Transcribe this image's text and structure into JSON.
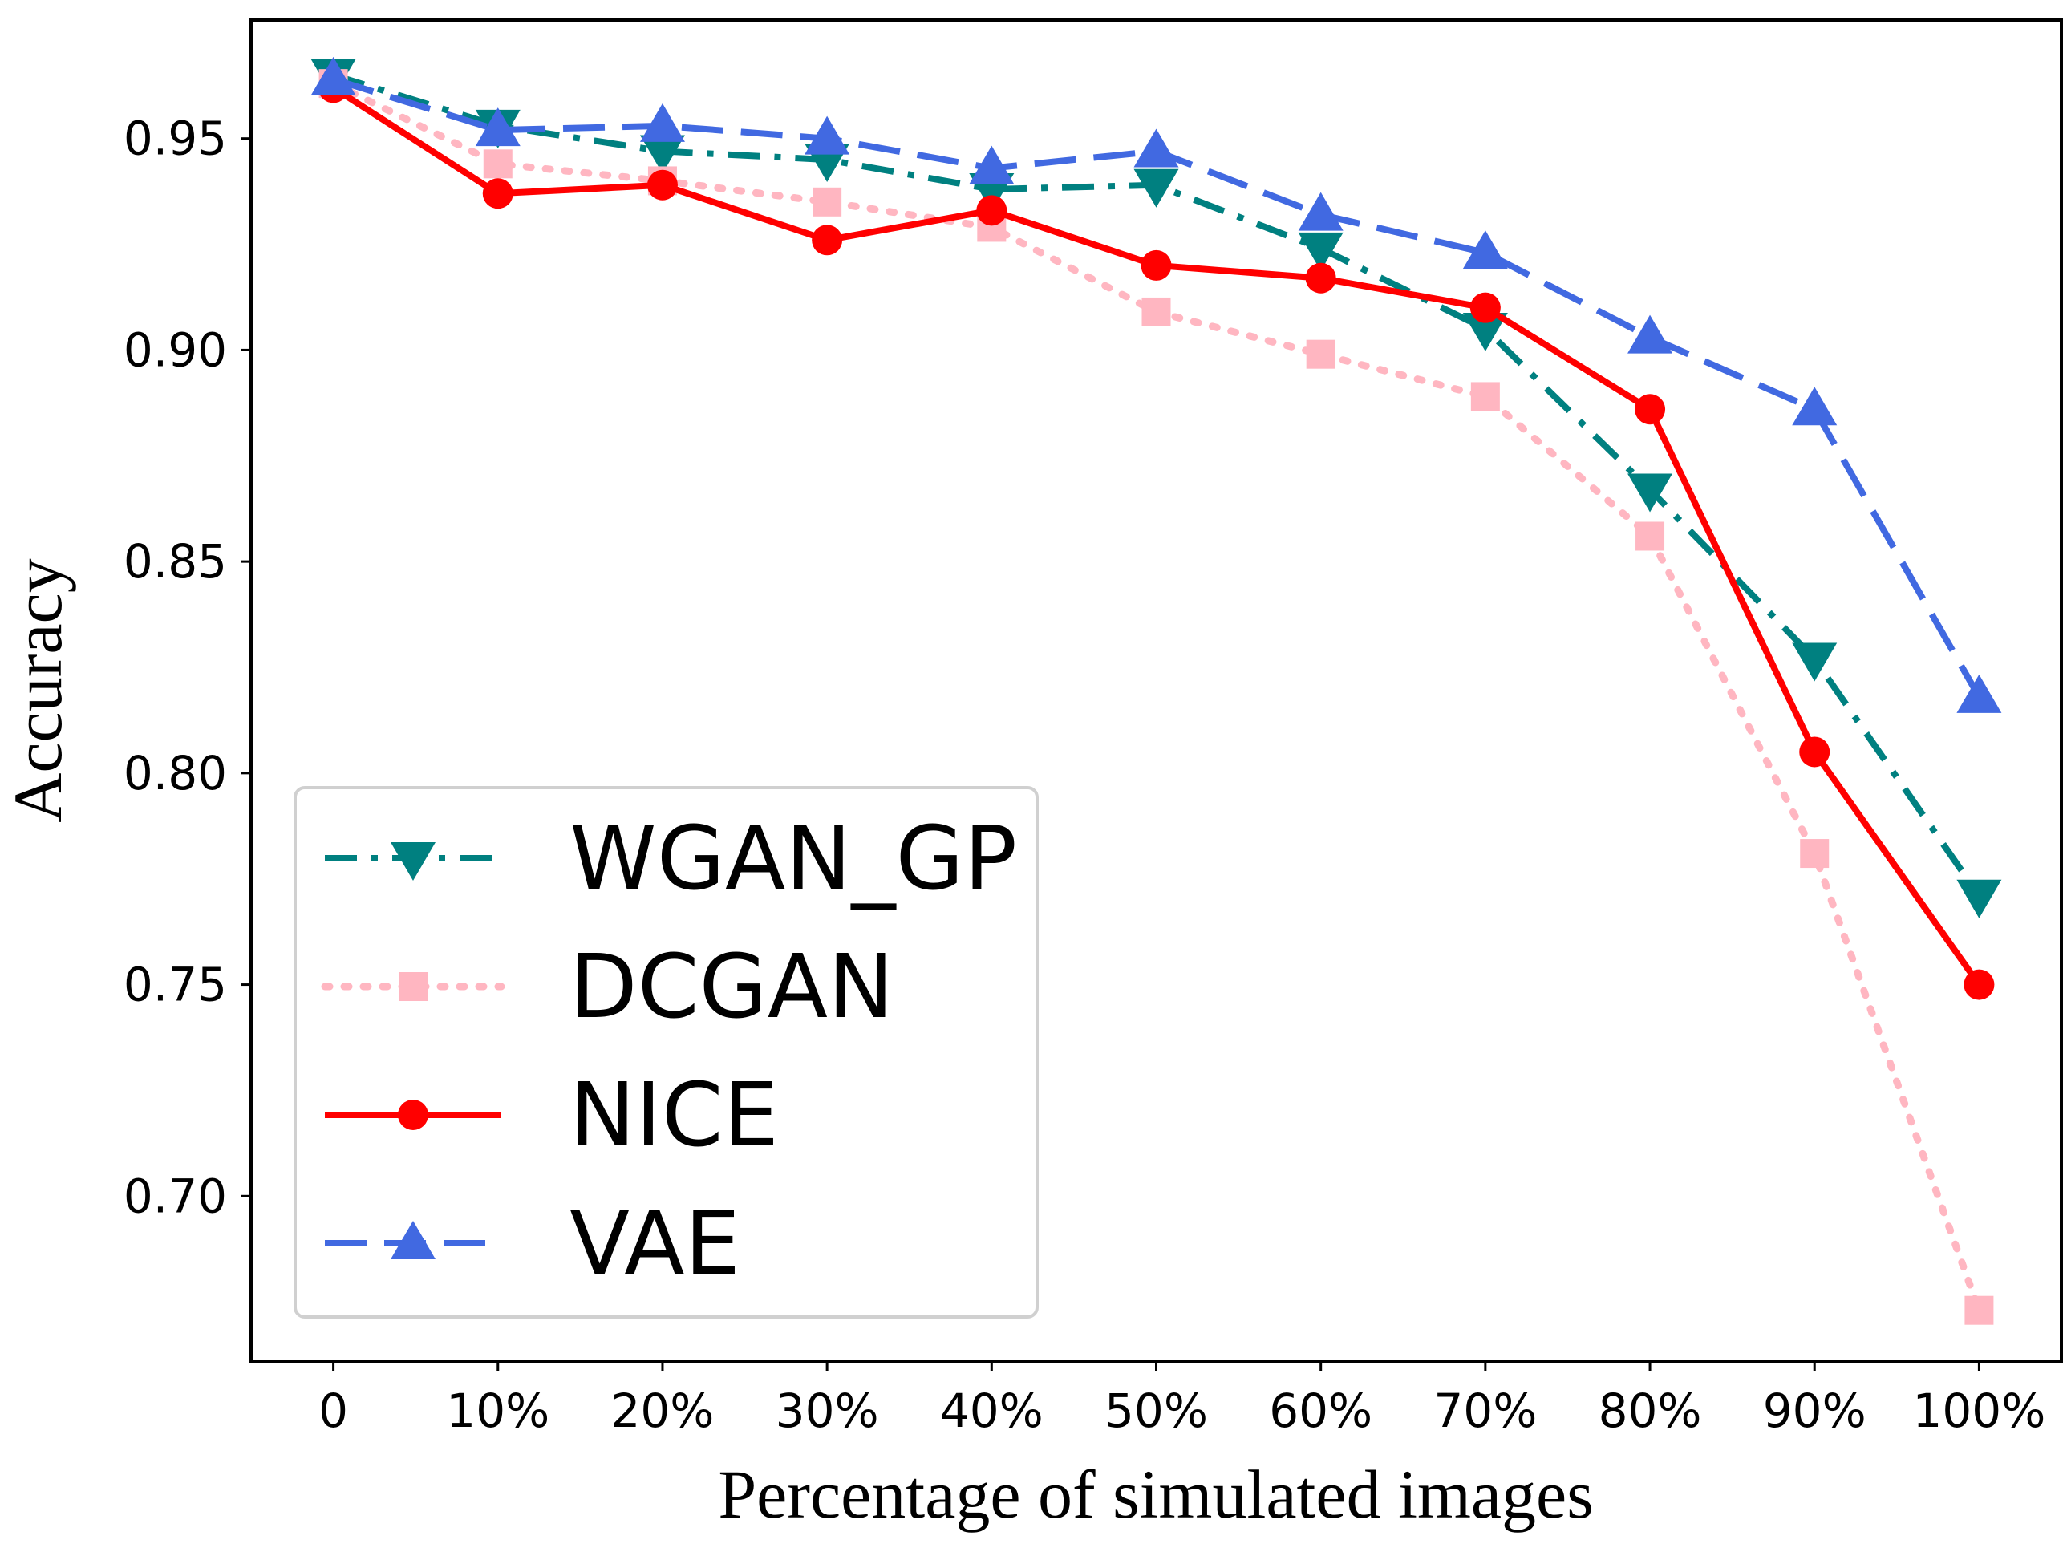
{
  "chart_data": {
    "type": "line",
    "title": "",
    "xlabel": "Percentage of simulated images",
    "ylabel": "Accuracy",
    "categories": [
      "0",
      "10%",
      "20%",
      "30%",
      "40%",
      "50%",
      "60%",
      "70%",
      "80%",
      "90%",
      "100%"
    ],
    "yticks": [
      0.7,
      0.75,
      0.8,
      0.85,
      0.9,
      0.95
    ],
    "ytick_labels": [
      "0.70",
      "0.75",
      "0.80",
      "0.85",
      "0.90",
      "0.95"
    ],
    "ylim": [
      0.661,
      0.978
    ],
    "xlim": [
      -0.5,
      10.5
    ],
    "grid": false,
    "legend": "lower-left",
    "series": [
      {
        "name": "WGAN_GP",
        "color": "#008080",
        "linestyle": "dashdot",
        "marker": "triangle-down",
        "values": [
          0.965,
          0.953,
          0.947,
          0.945,
          0.938,
          0.939,
          0.924,
          0.905,
          0.867,
          0.827,
          0.771
        ]
      },
      {
        "name": "DCGAN",
        "color": "#ffb6c1",
        "linestyle": "dotted",
        "marker": "square",
        "values": [
          0.963,
          0.944,
          0.94,
          0.935,
          0.929,
          0.909,
          0.899,
          0.889,
          0.856,
          0.781,
          0.673
        ]
      },
      {
        "name": "NICE",
        "color": "#ff0000",
        "linestyle": "solid",
        "marker": "circle",
        "values": [
          0.962,
          0.937,
          0.939,
          0.926,
          0.933,
          0.92,
          0.917,
          0.91,
          0.886,
          0.805,
          0.75
        ]
      },
      {
        "name": "VAE",
        "color": "#4169e1",
        "linestyle": "dashed",
        "marker": "triangle-up",
        "values": [
          0.964,
          0.952,
          0.953,
          0.95,
          0.943,
          0.947,
          0.932,
          0.923,
          0.903,
          0.886,
          0.818
        ]
      }
    ]
  }
}
